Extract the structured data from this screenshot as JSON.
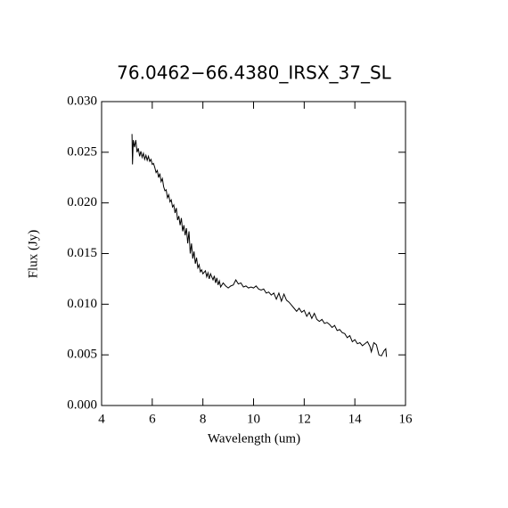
{
  "chart_data": {
    "type": "line",
    "title": "76.0462−66.4380_IRSX_37_SL",
    "x_label": "Wavelength (um)",
    "y_label": "Flux (Jy)",
    "color": "#000000",
    "xlim": [
      4,
      16
    ],
    "ylim": [
      0,
      0.03
    ],
    "xticks": [
      4,
      6,
      8,
      10,
      12,
      14,
      16
    ],
    "yticks": [
      {
        "value": 0,
        "label": "0.000"
      },
      0.005,
      {
        "value": 0.01,
        "label": "0.010"
      },
      0.015,
      {
        "value": 0.02,
        "label": "0.020"
      },
      0.025,
      {
        "value": 0.03,
        "label": "0.030"
      }
    ],
    "x": [
      5.2,
      5.22,
      5.25,
      5.3,
      5.35,
      5.4,
      5.45,
      5.5,
      5.55,
      5.6,
      5.65,
      5.7,
      5.75,
      5.8,
      5.85,
      5.9,
      5.95,
      6.0,
      6.05,
      6.1,
      6.15,
      6.2,
      6.25,
      6.3,
      6.35,
      6.4,
      6.45,
      6.5,
      6.55,
      6.6,
      6.65,
      6.7,
      6.75,
      6.8,
      6.85,
      6.9,
      6.95,
      7.0,
      7.05,
      7.1,
      7.15,
      7.2,
      7.25,
      7.3,
      7.35,
      7.4,
      7.45,
      7.5,
      7.55,
      7.6,
      7.65,
      7.7,
      7.75,
      7.8,
      7.85,
      7.9,
      7.95,
      8.0,
      8.1,
      8.15,
      8.2,
      8.25,
      8.3,
      8.4,
      8.45,
      8.5,
      8.55,
      8.6,
      8.65,
      8.7,
      8.8,
      8.9,
      9.0,
      9.1,
      9.2,
      9.3,
      9.4,
      9.5,
      9.6,
      9.7,
      9.8,
      9.9,
      10.0,
      10.1,
      10.2,
      10.3,
      10.4,
      10.5,
      10.6,
      10.7,
      10.8,
      10.9,
      11.0,
      11.1,
      11.2,
      11.3,
      11.4,
      11.5,
      11.6,
      11.7,
      11.8,
      11.9,
      12.0,
      12.1,
      12.2,
      12.3,
      12.4,
      12.5,
      12.6,
      12.7,
      12.8,
      12.9,
      13.0,
      13.1,
      13.2,
      13.3,
      13.4,
      13.5,
      13.6,
      13.7,
      13.8,
      13.9,
      14.0,
      14.1,
      14.2,
      14.3,
      14.4,
      14.5,
      14.6,
      14.65,
      14.75,
      14.85,
      14.95,
      15.05,
      15.15,
      15.22,
      15.25
    ],
    "values": [
      0.0268,
      0.0238,
      0.0262,
      0.0255,
      0.0262,
      0.025,
      0.0254,
      0.0246,
      0.0251,
      0.0245,
      0.0249,
      0.0243,
      0.0247,
      0.0242,
      0.0246,
      0.0241,
      0.0243,
      0.0238,
      0.0239,
      0.0235,
      0.023,
      0.0232,
      0.0225,
      0.0229,
      0.0221,
      0.0224,
      0.0216,
      0.0212,
      0.0213,
      0.0205,
      0.0208,
      0.0201,
      0.0203,
      0.0196,
      0.0198,
      0.019,
      0.0195,
      0.0183,
      0.0187,
      0.0178,
      0.0185,
      0.0172,
      0.0178,
      0.0168,
      0.0175,
      0.016,
      0.0172,
      0.015,
      0.016,
      0.0145,
      0.0152,
      0.014,
      0.0146,
      0.0136,
      0.0139,
      0.0132,
      0.0134,
      0.013,
      0.0133,
      0.0127,
      0.0131,
      0.0125,
      0.013,
      0.0124,
      0.0128,
      0.0121,
      0.0126,
      0.0119,
      0.0123,
      0.0117,
      0.0121,
      0.0118,
      0.0116,
      0.0118,
      0.0119,
      0.0124,
      0.012,
      0.0121,
      0.0117,
      0.0118,
      0.0116,
      0.0117,
      0.0116,
      0.0118,
      0.0115,
      0.0114,
      0.0115,
      0.0111,
      0.0112,
      0.0109,
      0.0111,
      0.0105,
      0.0111,
      0.0103,
      0.011,
      0.0104,
      0.0102,
      0.0099,
      0.0096,
      0.0093,
      0.0096,
      0.0092,
      0.0094,
      0.0088,
      0.0092,
      0.0086,
      0.0091,
      0.0085,
      0.0083,
      0.0085,
      0.0081,
      0.0082,
      0.008,
      0.0077,
      0.0079,
      0.0074,
      0.0075,
      0.0072,
      0.0071,
      0.0067,
      0.0069,
      0.0063,
      0.0065,
      0.0061,
      0.0062,
      0.0059,
      0.0061,
      0.0063,
      0.0058,
      0.0053,
      0.0062,
      0.006,
      0.005,
      0.0049,
      0.0054,
      0.0056,
      0.0048
    ]
  }
}
